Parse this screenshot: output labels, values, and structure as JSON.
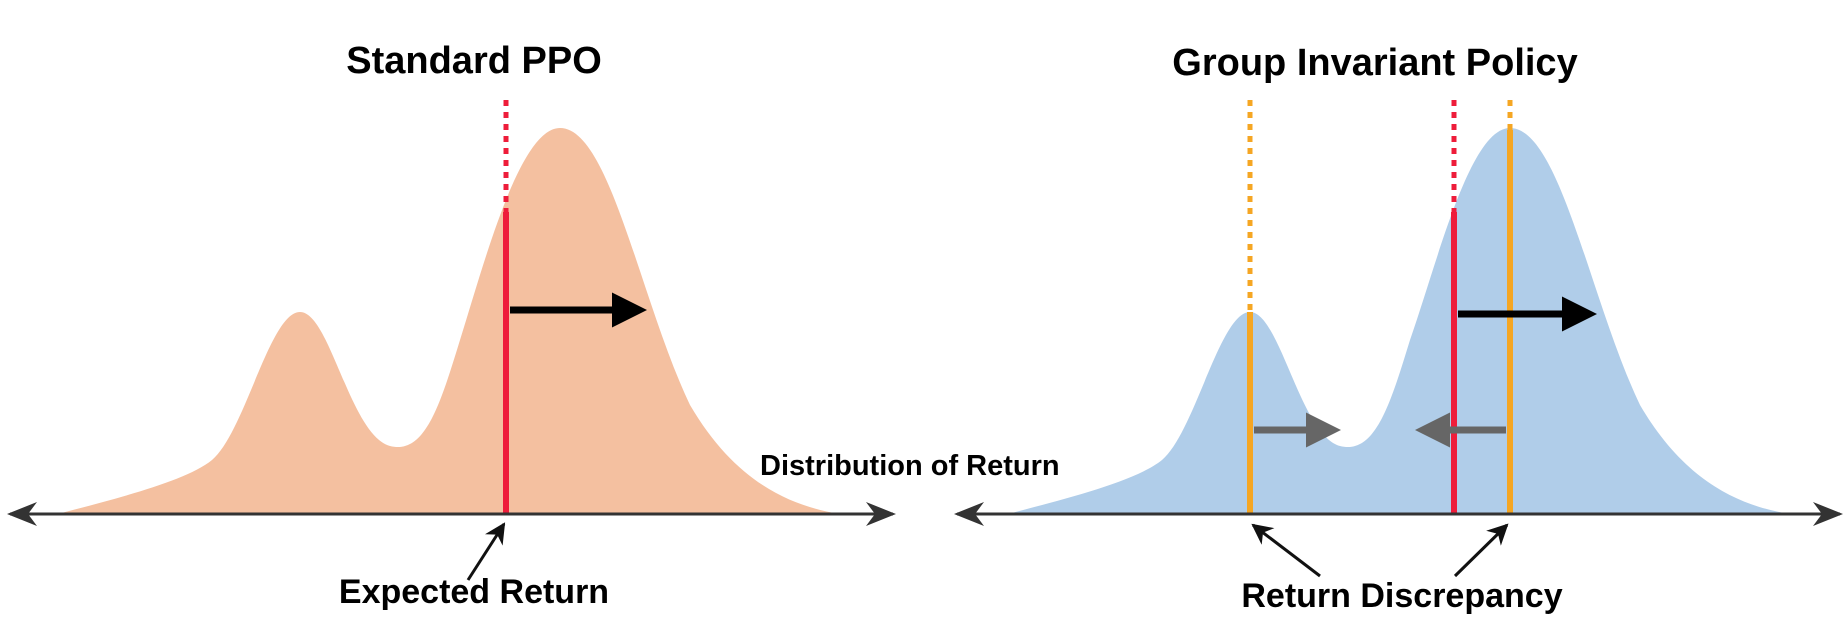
{
  "colors": {
    "ppo_fill": "#f4c0a0",
    "gip_fill": "#b0cde9",
    "axis": "#333333",
    "expected_line": "#ee1c3a",
    "group_line": "#f5a623",
    "shift_arrow": "#000000",
    "discrepancy_arrow": "#666666",
    "pointer_arrow": "#111111"
  },
  "left_panel": {
    "title": "Standard PPO",
    "caption": "Expected Return"
  },
  "right_panel": {
    "title": "Group Invariant Policy",
    "caption": "Return Discrepancy"
  },
  "axis_label": "Distribution of  Return"
}
